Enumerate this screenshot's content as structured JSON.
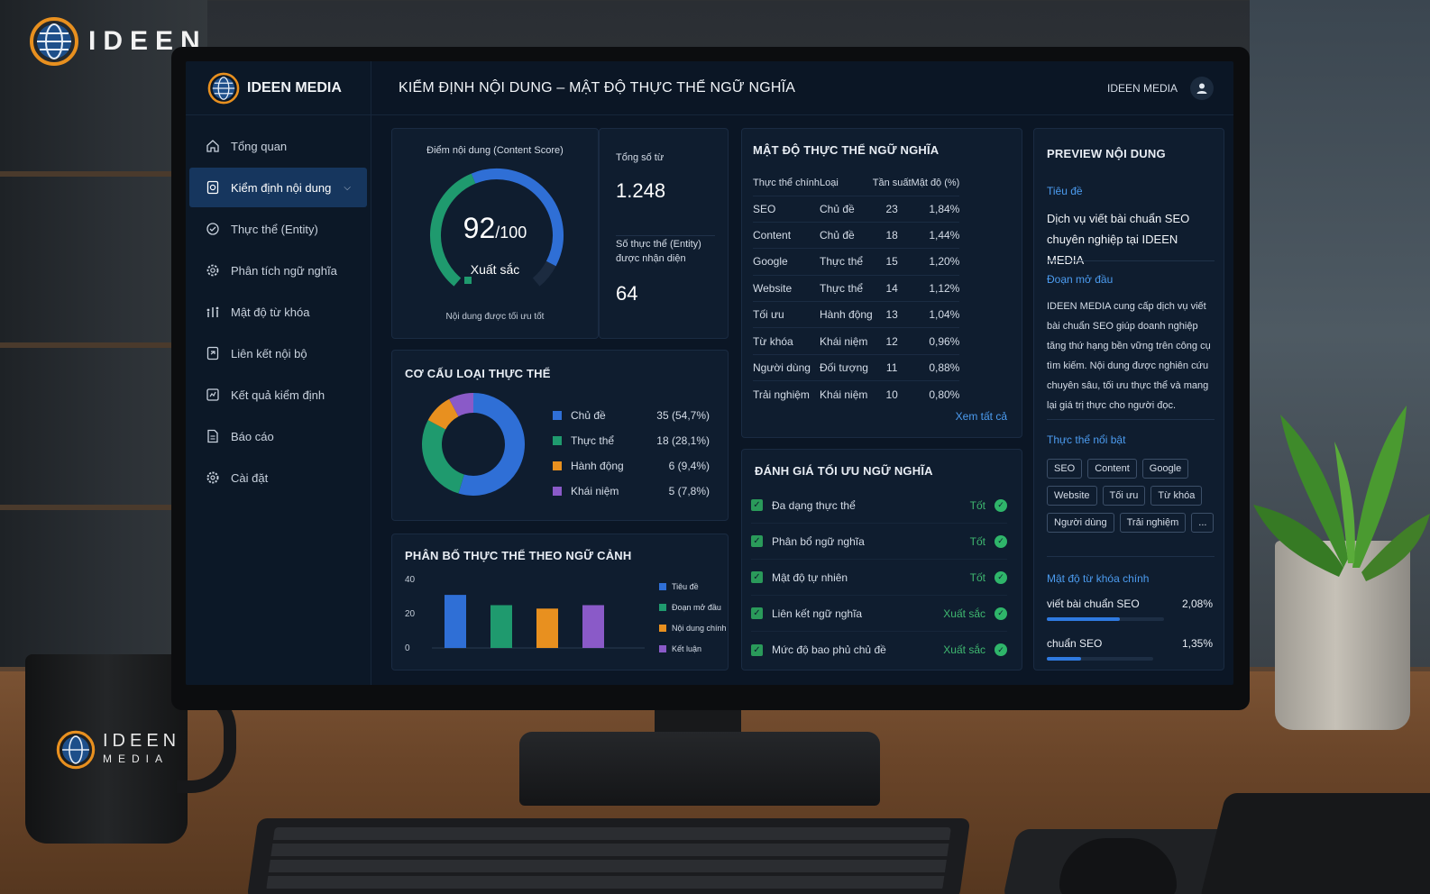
{
  "scene": {
    "logo_text": "IDEEN",
    "mug_logo": {
      "title": "IDEEN",
      "subtitle": "MEDIA"
    }
  },
  "app": {
    "brand": "IDEEN MEDIA",
    "page_title": "KIỂM ĐỊNH NỘI DUNG – MẬT ĐỘ THỰC THỂ NGỮ NGHĨA",
    "user_name": "IDEEN MEDIA"
  },
  "sidebar": {
    "items": [
      {
        "label": "Tổng quan",
        "icon": "home-icon"
      },
      {
        "label": "Kiểm định nội dung",
        "icon": "document-check-icon",
        "active": true
      },
      {
        "label": "Thực thể (Entity)",
        "icon": "entity-icon"
      },
      {
        "label": "Phân tích ngữ nghĩa",
        "icon": "semantic-gear-icon"
      },
      {
        "label": "Mật độ từ khóa",
        "icon": "density-chart-icon"
      },
      {
        "label": "Liên kết nội bộ",
        "icon": "internal-link-icon"
      },
      {
        "label": "Kết quả kiểm định",
        "icon": "results-icon"
      },
      {
        "label": "Báo cáo",
        "icon": "report-icon"
      },
      {
        "label": "Cài đặt",
        "icon": "settings-icon"
      }
    ]
  },
  "score": {
    "label": "Điểm nội dung (Content Score)",
    "value": "92",
    "max": "/100",
    "rating": "Xuất sắc",
    "caption": "Nội dung được tối ưu tốt",
    "fraction": 0.92,
    "colors": {
      "green": "#1f9a6e",
      "blue": "#2f6fd6",
      "track": "#1c2b40"
    }
  },
  "stats": {
    "total_words_label": "Tổng số từ",
    "total_words": "1.248",
    "entities_label_1": "Số thực thể (Entity)",
    "entities_label_2": "được nhận diện",
    "entities": "64"
  },
  "entity_types": {
    "title": "CƠ CẤU LOẠI THỰC THỂ",
    "items": [
      {
        "label": "Chủ đề",
        "value": "35 (54,7%)",
        "count": 35,
        "color": "#2f6fd6"
      },
      {
        "label": "Thực thể",
        "value": "18 (28,1%)",
        "count": 18,
        "color": "#1f9a6e"
      },
      {
        "label": "Hành động",
        "value": "6 (9,4%)",
        "count": 6,
        "color": "#e8901f"
      },
      {
        "label": "Khái niệm",
        "value": "5 (7,8%)",
        "count": 5,
        "color": "#8a5ac8"
      }
    ]
  },
  "context_chart": {
    "title": "PHÂN BỐ THỰC THỂ THEO NGỮ CẢNH",
    "y_ticks": [
      "40",
      "20",
      "0"
    ],
    "ylim": [
      0,
      40
    ],
    "bars": [
      {
        "name": "Tiêu đề",
        "value": 31,
        "color": "#2f6fd6"
      },
      {
        "name": "Đoạn mở đầu",
        "value": 25,
        "color": "#1f9a6e"
      },
      {
        "name": "Nội dung chính",
        "value": 23,
        "color": "#e8901f"
      },
      {
        "name": "Kết luận",
        "value": 25,
        "color": "#8a5ac8"
      }
    ]
  },
  "density": {
    "title": "MẬT ĐỘ THỰC THỂ NGỮ NGHĨA",
    "columns": [
      "Thực thể chính",
      "Loại",
      "Tần suất",
      "Mật độ (%)"
    ],
    "rows": [
      [
        "SEO",
        "Chủ đề",
        "23",
        "1,84%"
      ],
      [
        "Content",
        "Chủ đề",
        "18",
        "1,44%"
      ],
      [
        "Google",
        "Thực thể",
        "15",
        "1,20%"
      ],
      [
        "Website",
        "Thực thể",
        "14",
        "1,12%"
      ],
      [
        "Tối ưu",
        "Hành động",
        "13",
        "1,04%"
      ],
      [
        "Từ khóa",
        "Khái niệm",
        "12",
        "0,96%"
      ],
      [
        "Người dùng",
        "Đối tượng",
        "11",
        "0,88%"
      ],
      [
        "Trải nghiệm",
        "Khái niệm",
        "10",
        "0,80%"
      ]
    ],
    "see_all": "Xem tất cả"
  },
  "evaluation": {
    "title": "ĐÁNH GIÁ TỐI ƯU NGỮ NGHĨA",
    "items": [
      {
        "label": "Đa dạng thực thể",
        "status": "Tốt"
      },
      {
        "label": "Phân bổ ngữ nghĩa",
        "status": "Tốt"
      },
      {
        "label": "Mật độ tự nhiên",
        "status": "Tốt"
      },
      {
        "label": "Liên kết ngữ nghĩa",
        "status": "Xuất sắc"
      },
      {
        "label": "Mức độ bao phủ chủ đề",
        "status": "Xuất sắc"
      }
    ]
  },
  "preview": {
    "title": "PREVIEW NỘI DUNG",
    "heading_label": "Tiêu đề",
    "heading_text": "Dịch vụ viết bài chuẩn SEO chuyên nghiệp tại IDEEN MEDIA",
    "intro_label": "Đoạn mở đầu",
    "intro_text": "IDEEN MEDIA cung cấp dịch vụ viết bài chuẩn SEO giúp doanh nghiệp tăng thứ hạng bền vững trên công cụ tìm kiếm. Nội dung được nghiên cứu chuyên sâu, tối ưu thực thể và mang lại giá trị thực cho người đọc.",
    "entities_label": "Thực thể nổi bật",
    "tags": [
      "SEO",
      "Content",
      "Google",
      "Website",
      "Tối ưu",
      "Từ khóa",
      "Người dùng",
      "Trải nghiệm",
      "..."
    ],
    "keywords_label": "Mật độ từ khóa chính",
    "keywords": [
      {
        "keyword": "viết bài chuẩn SEO",
        "value": "2,08%",
        "fill": 0.62
      },
      {
        "keyword": "chuẩn SEO",
        "value": "1,35%",
        "fill": 0.32
      }
    ]
  }
}
